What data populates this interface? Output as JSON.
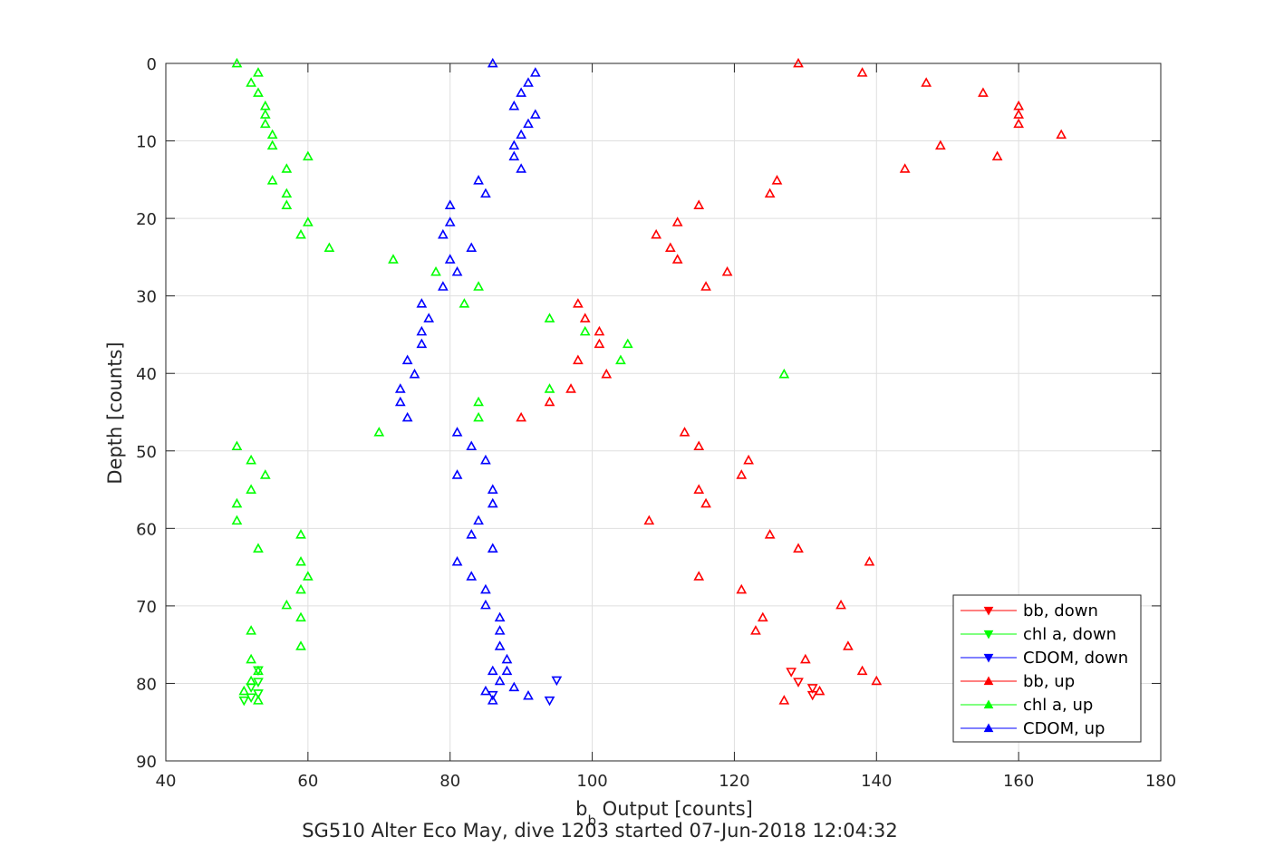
{
  "chart_data": {
    "type": "scatter",
    "xlabel_main": "b",
    "xlabel_sub": "b",
    "xlabel_rest": " Output [counts]",
    "ylabel": "Depth [counts]",
    "caption": "SG510 Alter Eco May, dive 1203 started 07-Jun-2018 12:04:32",
    "xlim": [
      40,
      180
    ],
    "ylim": [
      0,
      90
    ],
    "y_reversed": true,
    "grid": true,
    "x_ticks": [
      "40",
      "60",
      "80",
      "100",
      "120",
      "140",
      "160",
      "180"
    ],
    "y_ticks": [
      "0",
      "10",
      "20",
      "30",
      "40",
      "50",
      "60",
      "70",
      "80",
      "90"
    ],
    "legend_position": "bottom-right",
    "series": [
      {
        "name": "bb, down",
        "color": "#ff0000",
        "marker": "triangle-down",
        "points": [
          [
            128,
            78.5
          ],
          [
            129,
            79.8
          ],
          [
            131,
            80.6
          ],
          [
            131,
            81.5
          ]
        ]
      },
      {
        "name": "chl a, down",
        "color": "#00ff00",
        "marker": "triangle-down",
        "points": [
          [
            53,
            78.3
          ],
          [
            52,
            80.5
          ],
          [
            53,
            81.3
          ],
          [
            51,
            82.2
          ],
          [
            52,
            81.8
          ],
          [
            53,
            79.8
          ]
        ]
      },
      {
        "name": "CDOM, down",
        "color": "#0000ff",
        "marker": "triangle-down",
        "points": [
          [
            95,
            79.6
          ],
          [
            94,
            82.2
          ],
          [
            86,
            81.5
          ]
        ]
      },
      {
        "name": "bb, up",
        "color": "#ff0000",
        "marker": "triangle-up",
        "points": [
          [
            129,
            0
          ],
          [
            138,
            1.2
          ],
          [
            147,
            2.5
          ],
          [
            155,
            3.8
          ],
          [
            160,
            5.5
          ],
          [
            160,
            6.6
          ],
          [
            160,
            7.8
          ],
          [
            166,
            9.2
          ],
          [
            149,
            10.6
          ],
          [
            157,
            12
          ],
          [
            144,
            13.6
          ],
          [
            126,
            15.1
          ],
          [
            125,
            16.8
          ],
          [
            115,
            18.3
          ],
          [
            112,
            20.5
          ],
          [
            109,
            22.1
          ],
          [
            111,
            23.8
          ],
          [
            112,
            25.3
          ],
          [
            119,
            26.9
          ],
          [
            116,
            28.8
          ],
          [
            98,
            31
          ],
          [
            99,
            32.9
          ],
          [
            101,
            34.6
          ],
          [
            101,
            36.2
          ],
          [
            98,
            38.3
          ],
          [
            102,
            40.1
          ],
          [
            97,
            42
          ],
          [
            94,
            43.7
          ],
          [
            90,
            45.7
          ],
          [
            113,
            47.6
          ],
          [
            115,
            49.4
          ],
          [
            122,
            51.2
          ],
          [
            121,
            53.1
          ],
          [
            115,
            55
          ],
          [
            116,
            56.8
          ],
          [
            108,
            59
          ],
          [
            125,
            60.8
          ],
          [
            129,
            62.6
          ],
          [
            139,
            64.3
          ],
          [
            115,
            66.2
          ],
          [
            121,
            67.9
          ],
          [
            135,
            69.9
          ],
          [
            124,
            71.5
          ],
          [
            123,
            73.2
          ],
          [
            136,
            75.2
          ],
          [
            130,
            76.9
          ],
          [
            138,
            78.4
          ],
          [
            140,
            79.7
          ],
          [
            132,
            81
          ],
          [
            127,
            82.2
          ]
        ]
      },
      {
        "name": "chl a, up",
        "color": "#00ff00",
        "marker": "triangle-up",
        "points": [
          [
            50,
            0
          ],
          [
            53,
            1.2
          ],
          [
            52,
            2.5
          ],
          [
            53,
            3.8
          ],
          [
            54,
            5.5
          ],
          [
            54,
            6.6
          ],
          [
            54,
            7.8
          ],
          [
            55,
            9.2
          ],
          [
            55,
            10.6
          ],
          [
            60,
            12
          ],
          [
            57,
            13.6
          ],
          [
            55,
            15.1
          ],
          [
            57,
            16.8
          ],
          [
            57,
            18.3
          ],
          [
            60,
            20.5
          ],
          [
            59,
            22.1
          ],
          [
            63,
            23.8
          ],
          [
            72,
            25.3
          ],
          [
            78,
            26.9
          ],
          [
            84,
            28.8
          ],
          [
            82,
            31
          ],
          [
            94,
            32.9
          ],
          [
            99,
            34.6
          ],
          [
            105,
            36.2
          ],
          [
            104,
            38.3
          ],
          [
            127,
            40.1
          ],
          [
            94,
            42
          ],
          [
            84,
            43.7
          ],
          [
            84,
            45.7
          ],
          [
            70,
            47.6
          ],
          [
            50,
            49.4
          ],
          [
            52,
            51.2
          ],
          [
            54,
            53.1
          ],
          [
            52,
            55
          ],
          [
            50,
            56.8
          ],
          [
            50,
            59
          ],
          [
            59,
            60.8
          ],
          [
            53,
            62.6
          ],
          [
            59,
            64.3
          ],
          [
            60,
            66.2
          ],
          [
            59,
            67.9
          ],
          [
            57,
            69.9
          ],
          [
            59,
            71.5
          ],
          [
            52,
            73.2
          ],
          [
            59,
            75.2
          ],
          [
            52,
            76.9
          ],
          [
            53,
            78.4
          ],
          [
            52,
            79.7
          ],
          [
            51,
            81
          ],
          [
            53,
            82.2
          ]
        ]
      },
      {
        "name": "CDOM, up",
        "color": "#0000ff",
        "marker": "triangle-up",
        "points": [
          [
            86,
            0
          ],
          [
            92,
            1.2
          ],
          [
            91,
            2.5
          ],
          [
            90,
            3.8
          ],
          [
            89,
            5.5
          ],
          [
            92,
            6.6
          ],
          [
            91,
            7.8
          ],
          [
            90,
            9.2
          ],
          [
            89,
            10.6
          ],
          [
            89,
            12
          ],
          [
            90,
            13.6
          ],
          [
            84,
            15.1
          ],
          [
            85,
            16.8
          ],
          [
            80,
            18.3
          ],
          [
            80,
            20.5
          ],
          [
            79,
            22.1
          ],
          [
            83,
            23.8
          ],
          [
            80,
            25.3
          ],
          [
            81,
            26.9
          ],
          [
            79,
            28.8
          ],
          [
            76,
            31
          ],
          [
            77,
            32.9
          ],
          [
            76,
            34.6
          ],
          [
            76,
            36.2
          ],
          [
            74,
            38.3
          ],
          [
            75,
            40.1
          ],
          [
            73,
            42
          ],
          [
            73,
            43.7
          ],
          [
            74,
            45.7
          ],
          [
            81,
            47.6
          ],
          [
            83,
            49.4
          ],
          [
            85,
            51.2
          ],
          [
            81,
            53.1
          ],
          [
            86,
            55
          ],
          [
            86,
            56.8
          ],
          [
            84,
            59
          ],
          [
            83,
            60.8
          ],
          [
            86,
            62.6
          ],
          [
            81,
            64.3
          ],
          [
            83,
            66.2
          ],
          [
            85,
            67.9
          ],
          [
            85,
            69.9
          ],
          [
            87,
            71.5
          ],
          [
            87,
            73.2
          ],
          [
            87,
            75.2
          ],
          [
            88,
            76.9
          ],
          [
            86,
            78.4
          ],
          [
            88,
            78.4
          ],
          [
            87,
            79.7
          ],
          [
            89,
            80.5
          ],
          [
            85,
            81
          ],
          [
            91,
            81.6
          ],
          [
            86,
            82.2
          ]
        ]
      }
    ]
  }
}
